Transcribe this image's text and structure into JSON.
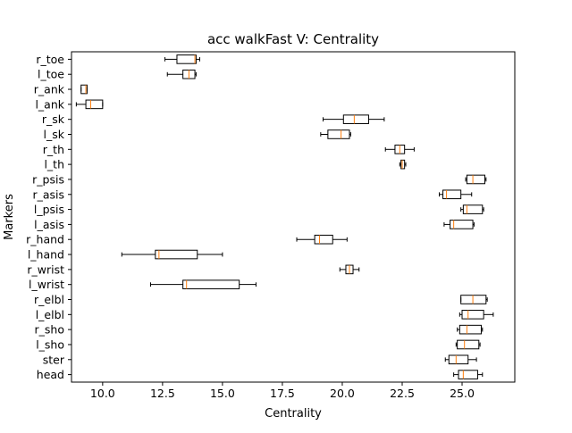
{
  "chart_data": {
    "type": "box",
    "orientation": "horizontal",
    "title": "acc walkFast V: Centrality",
    "xlabel": "Centrality",
    "ylabel": "Markers",
    "xlim": [
      8.7,
      27.2
    ],
    "xticks": [
      "10.0",
      "12.5",
      "15.0",
      "17.5",
      "20.0",
      "22.5",
      "25.0"
    ],
    "xtick_values": [
      10.0,
      12.5,
      15.0,
      17.5,
      20.0,
      22.5,
      25.0
    ],
    "grid": false,
    "colors": {
      "box": "#000000",
      "median": "#ff7f0e"
    },
    "categories": [
      "head",
      "ster",
      "l_sho",
      "r_sho",
      "l_elbl",
      "r_elbl",
      "l_wrist",
      "r_wrist",
      "l_hand",
      "r_hand",
      "l_asis",
      "l_psis",
      "r_asis",
      "r_psis",
      "l_th",
      "r_th",
      "l_sk",
      "r_sk",
      "l_ank",
      "r_ank",
      "l_toe",
      "r_toe"
    ],
    "boxes": [
      {
        "label": "head",
        "whislo": 24.65,
        "q1": 24.85,
        "med": 25.05,
        "q3": 25.65,
        "whishi": 25.85
      },
      {
        "label": "ster",
        "whislo": 24.3,
        "q1": 24.45,
        "med": 24.75,
        "q3": 25.25,
        "whishi": 25.6
      },
      {
        "label": "l_sho",
        "whislo": 24.75,
        "q1": 24.8,
        "med": 25.1,
        "q3": 25.7,
        "whishi": 25.75
      },
      {
        "label": "r_sho",
        "whislo": 24.8,
        "q1": 24.9,
        "med": 25.2,
        "q3": 25.8,
        "whishi": 25.85
      },
      {
        "label": "l_elbl",
        "whislo": 24.9,
        "q1": 25.0,
        "med": 25.25,
        "q3": 25.9,
        "whishi": 26.3
      },
      {
        "label": "r_elbl",
        "whislo": 24.95,
        "q1": 24.95,
        "med": 25.45,
        "q3": 26.0,
        "whishi": 26.05
      },
      {
        "label": "l_wrist",
        "whislo": 12.0,
        "q1": 13.35,
        "med": 13.5,
        "q3": 15.7,
        "whishi": 16.4
      },
      {
        "label": "r_wrist",
        "whislo": 19.9,
        "q1": 20.15,
        "med": 20.3,
        "q3": 20.45,
        "whishi": 20.7
      },
      {
        "label": "l_hand",
        "whislo": 10.8,
        "q1": 12.2,
        "med": 12.35,
        "q3": 13.95,
        "whishi": 15.0
      },
      {
        "label": "r_hand",
        "whislo": 18.1,
        "q1": 18.85,
        "med": 19.05,
        "q3": 19.6,
        "whishi": 20.2
      },
      {
        "label": "l_asis",
        "whislo": 24.25,
        "q1": 24.5,
        "med": 24.65,
        "q3": 25.45,
        "whishi": 25.5
      },
      {
        "label": "l_psis",
        "whislo": 24.95,
        "q1": 25.05,
        "med": 25.2,
        "q3": 25.85,
        "whishi": 25.9
      },
      {
        "label": "r_asis",
        "whislo": 24.05,
        "q1": 24.2,
        "med": 24.35,
        "q3": 24.95,
        "whishi": 25.4
      },
      {
        "label": "r_psis",
        "whislo": 25.15,
        "q1": 25.2,
        "med": 25.45,
        "q3": 25.95,
        "whishi": 26.0
      },
      {
        "label": "l_th",
        "whislo": 22.4,
        "q1": 22.45,
        "med": 22.5,
        "q3": 22.6,
        "whishi": 22.65
      },
      {
        "label": "r_th",
        "whislo": 21.8,
        "q1": 22.2,
        "med": 22.4,
        "q3": 22.6,
        "whishi": 23.0
      },
      {
        "label": "l_sk",
        "whislo": 19.1,
        "q1": 19.4,
        "med": 19.95,
        "q3": 20.3,
        "whishi": 20.35
      },
      {
        "label": "r_sk",
        "whislo": 19.2,
        "q1": 20.05,
        "med": 20.5,
        "q3": 21.1,
        "whishi": 21.75
      },
      {
        "label": "l_ank",
        "whislo": 8.9,
        "q1": 9.3,
        "med": 9.5,
        "q3": 10.0,
        "whishi": 10.0
      },
      {
        "label": "r_ank",
        "whislo": 9.1,
        "q1": 9.1,
        "med": 9.3,
        "q3": 9.35,
        "whishi": 9.35
      },
      {
        "label": "l_toe",
        "whislo": 12.7,
        "q1": 13.35,
        "med": 13.6,
        "q3": 13.85,
        "whishi": 13.9
      },
      {
        "label": "r_toe",
        "whislo": 12.6,
        "q1": 13.1,
        "med": 13.85,
        "q3": 13.9,
        "whishi": 14.05
      }
    ]
  }
}
